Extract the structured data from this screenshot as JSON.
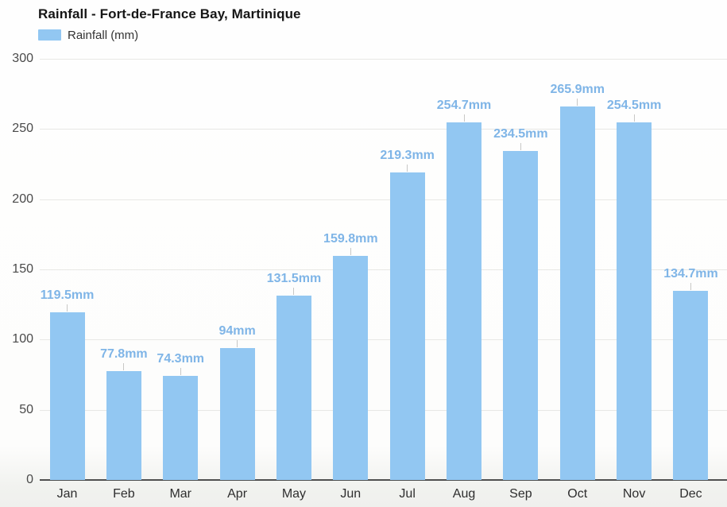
{
  "header": {
    "title": "Rainfall - Fort-de-France Bay, Martinique"
  },
  "legend": {
    "label": "Rainfall (mm)",
    "swatch_color": "#92c7f2"
  },
  "chart_data": {
    "type": "bar",
    "title": "Rainfall - Fort-de-France Bay, Martinique",
    "categories": [
      "Jan",
      "Feb",
      "Mar",
      "Apr",
      "May",
      "Jun",
      "Jul",
      "Aug",
      "Sep",
      "Oct",
      "Nov",
      "Dec"
    ],
    "series": [
      {
        "name": "Rainfall (mm)",
        "values": [
          119.5,
          77.8,
          74.3,
          94,
          131.5,
          159.8,
          219.3,
          254.7,
          234.5,
          265.9,
          254.5,
          134.7
        ]
      }
    ],
    "value_labels": [
      "119.5mm",
      "77.8mm",
      "74.3mm",
      "94mm",
      "131.5mm",
      "159.8mm",
      "219.3mm",
      "254.7mm",
      "234.5mm",
      "265.9mm",
      "254.5mm",
      "134.7mm"
    ],
    "xlabel": "",
    "ylabel": "",
    "ylim": [
      0,
      300
    ],
    "ytick_step": 50,
    "ytick_labels": [
      "0",
      "50",
      "100",
      "150",
      "200",
      "250",
      "300"
    ],
    "grid": "horizontal",
    "legend_position": "top-left",
    "bar_color": "#92c7f2",
    "value_label_color": "#7fb5e7"
  }
}
